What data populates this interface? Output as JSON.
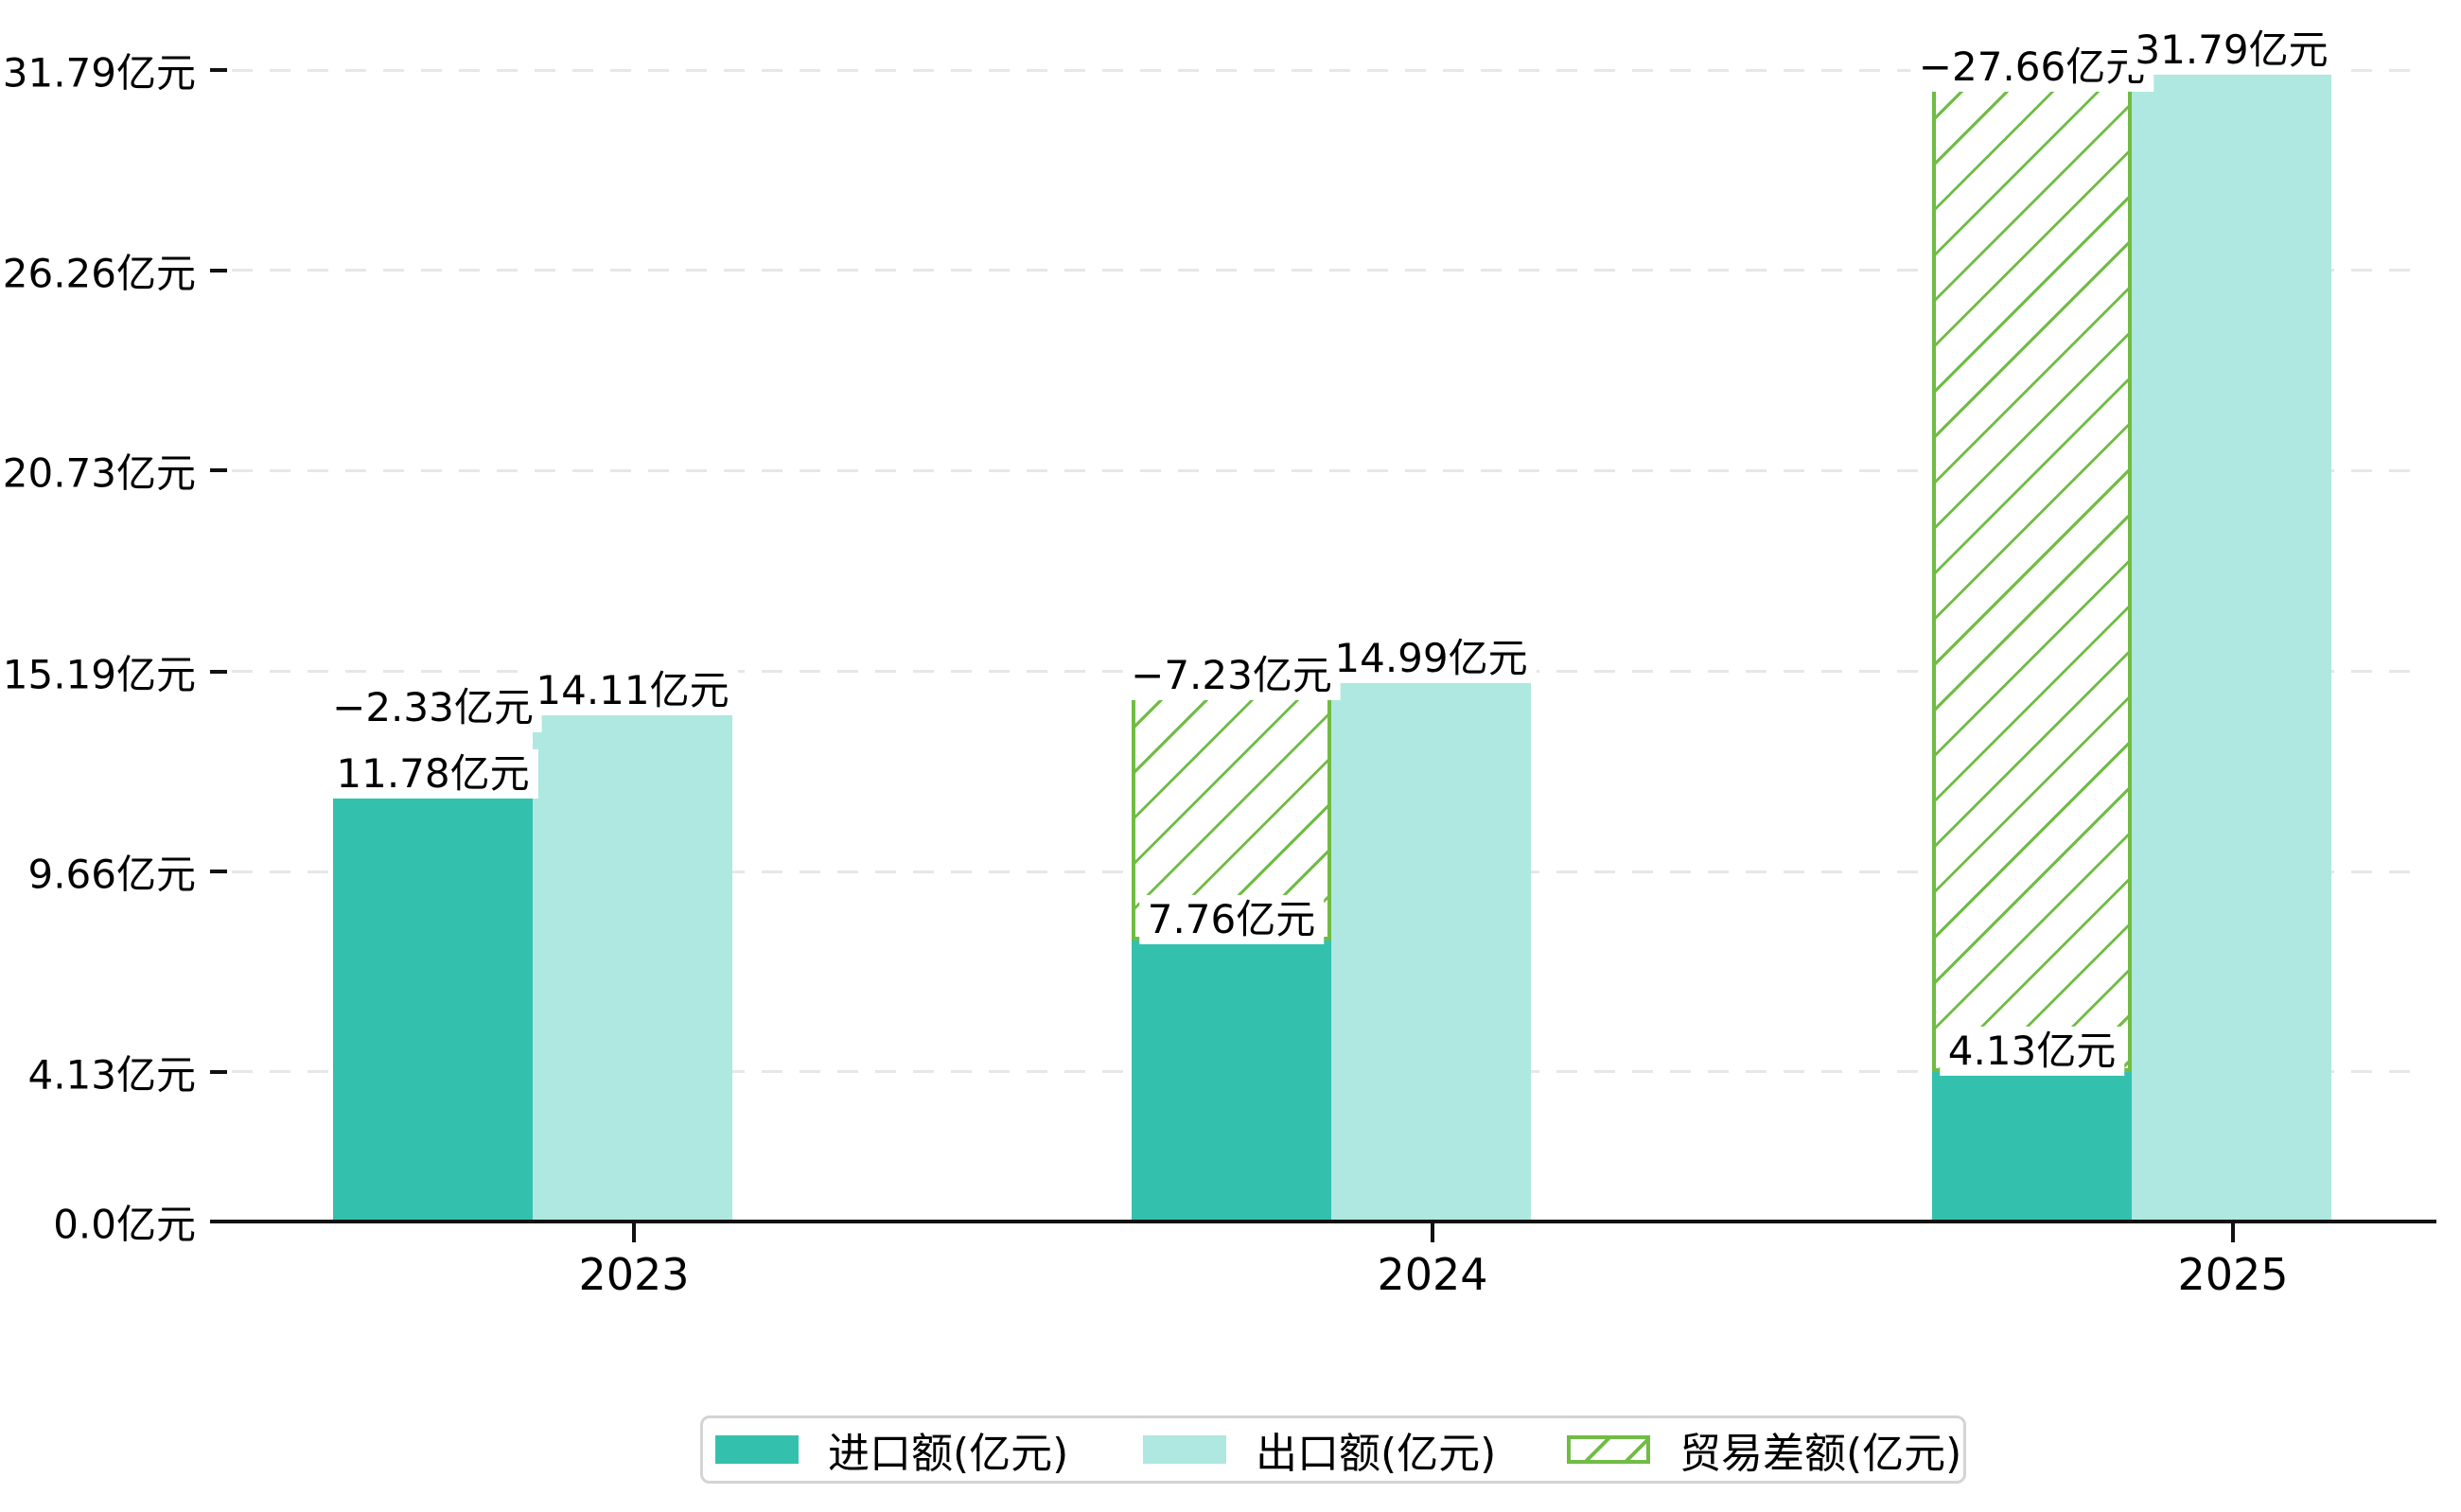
{
  "chart_data": {
    "type": "bar",
    "title": "",
    "categories": [
      "2023",
      "2024",
      "2025"
    ],
    "series": [
      {
        "name": "进口额(亿元)",
        "role": "import",
        "style": "solid",
        "color": "#33c1ae",
        "values": [
          11.78,
          7.76,
          4.13
        ],
        "labels": [
          "11.78亿元",
          "7.76亿元",
          "4.13亿元"
        ]
      },
      {
        "name": "出口额(亿元)",
        "role": "export",
        "style": "solid",
        "color": "#aee8e0",
        "values": [
          14.11,
          14.99,
          31.79
        ],
        "labels": [
          "14.11亿元",
          "14.99亿元",
          "31.79亿元"
        ]
      },
      {
        "name": "贸易差额(亿元)",
        "role": "trade-balance",
        "style": "hatched",
        "color": "#70bc44",
        "values": [
          -2.33,
          -7.23,
          -27.66
        ],
        "labels": [
          "−2.33亿元",
          "−7.23亿元",
          "−27.66亿元"
        ],
        "bar_rendered": [
          false,
          true,
          true
        ]
      }
    ],
    "y_axis": {
      "ticks": [
        {
          "v": 0,
          "label": "0.0亿元"
        },
        {
          "v": 4.13,
          "label": "4.13亿元"
        },
        {
          "v": 9.66,
          "label": "9.66亿元"
        },
        {
          "v": 15.19,
          "label": "15.19亿元"
        },
        {
          "v": 20.73,
          "label": "20.73亿元"
        },
        {
          "v": 26.26,
          "label": "26.26亿元"
        },
        {
          "v": 31.79,
          "label": "31.79亿元"
        }
      ]
    },
    "ylim": [
      0,
      31.79
    ],
    "grid": "horizontal-dashed",
    "legend_position": "bottom-center",
    "colors": {
      "axis": "#111111",
      "gridline": "#e7e7e7",
      "label_text": "#000000",
      "legend_border": "#d4d4d4",
      "background": "#ffffff"
    }
  }
}
